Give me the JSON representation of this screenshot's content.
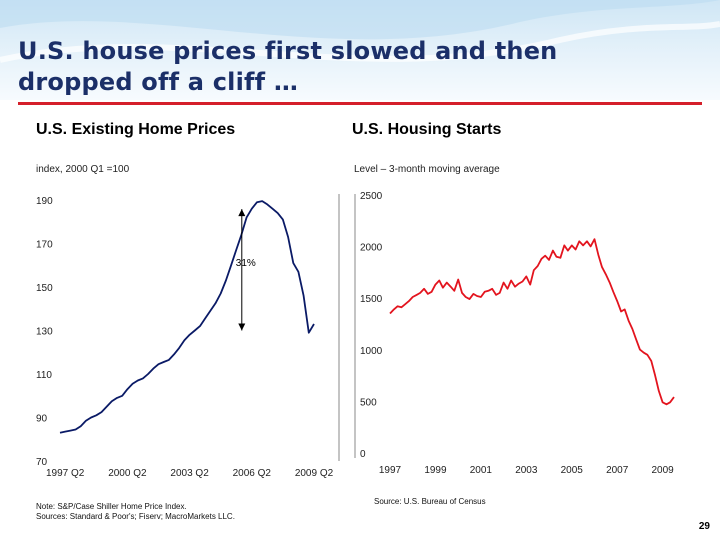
{
  "slide": {
    "title": "U.S. house prices first slowed and then dropped off a cliff …",
    "page_number": "29",
    "accent_color": "#d51f2a",
    "title_color": "#1b2f68"
  },
  "left_panel": {
    "title": "U.S. Existing Home Prices",
    "subtitle": "index, 2000 Q1 =100",
    "note": "Note: S&P/Case Shiller Home Price Index.\nSources: Standard & Poor's; Fiserv; MacroMarkets LLC."
  },
  "right_panel": {
    "title": "U.S. Housing Starts",
    "subtitle": "Level – 3-month moving average",
    "note": "Source: U.S. Bureau of Census"
  },
  "chart_data": [
    {
      "type": "line",
      "title": "U.S. Existing Home Prices",
      "ylabel": "index, 2000 Q1 =100",
      "ylim": [
        70,
        190
      ],
      "yticks": [
        190,
        170,
        150,
        130,
        110,
        90,
        70
      ],
      "xlim": [
        1997.0,
        2009.25
      ],
      "xticks": [
        {
          "label": "1997 Q2",
          "value": 1997.25
        },
        {
          "label": "2000 Q2",
          "value": 2000.25
        },
        {
          "label": "2003 Q2",
          "value": 2003.25
        },
        {
          "label": "2006 Q2",
          "value": 2006.25
        },
        {
          "label": "2009 Q2",
          "value": 2009.25
        }
      ],
      "series": [
        {
          "name": "S&P/Case Shiller Home Price Index",
          "color": "#0a1a66",
          "x": [
            1997.0,
            1997.25,
            1997.5,
            1997.75,
            1998.0,
            1998.25,
            1998.5,
            1998.75,
            1999.0,
            1999.25,
            1999.5,
            1999.75,
            2000.0,
            2000.25,
            2000.5,
            2000.75,
            2001.0,
            2001.25,
            2001.5,
            2001.75,
            2002.0,
            2002.25,
            2002.5,
            2002.75,
            2003.0,
            2003.25,
            2003.5,
            2003.75,
            2004.0,
            2004.25,
            2004.5,
            2004.75,
            2005.0,
            2005.25,
            2005.5,
            2005.75,
            2006.0,
            2006.25,
            2006.5,
            2006.75,
            2007.0,
            2007.25,
            2007.5,
            2007.75,
            2008.0,
            2008.25,
            2008.5,
            2008.75,
            2009.0,
            2009.25
          ],
          "values": [
            83,
            83.5,
            84,
            84.5,
            86,
            88.5,
            90,
            91,
            92.5,
            95,
            97.5,
            99,
            100,
            103,
            105.5,
            107,
            108,
            110,
            112.5,
            114.5,
            115.5,
            116.5,
            119,
            122,
            125.5,
            128,
            130,
            132,
            135.5,
            139,
            142.5,
            147,
            153,
            160,
            167,
            174,
            182,
            186,
            189,
            189.5,
            188,
            186,
            184,
            181,
            173,
            161,
            157,
            146,
            129,
            133
          ]
        }
      ],
      "annotations": [
        {
          "text": "31%",
          "type": "double-arrow",
          "from": 189.5,
          "to": 130,
          "at_x": 2006.25
        }
      ]
    },
    {
      "type": "line",
      "title": "U.S. Housing Starts",
      "ylabel": "Level – 3-month moving average",
      "ylim": [
        0,
        2500
      ],
      "yticks": [
        2500,
        2000,
        1500,
        1000,
        500,
        0
      ],
      "xlim": [
        1997.0,
        2009.5
      ],
      "xticks": [
        {
          "label": "1997",
          "value": 1997.0
        },
        {
          "label": "1999",
          "value": 1999.0
        },
        {
          "label": "2001",
          "value": 2001.0
        },
        {
          "label": "2003",
          "value": 2003.0
        },
        {
          "label": "2005",
          "value": 2005.0
        },
        {
          "label": "2007",
          "value": 2007.0
        },
        {
          "label": "2009",
          "value": 2009.0
        }
      ],
      "series": [
        {
          "name": "Housing Starts",
          "color": "#e3141e",
          "x": [
            1997.0,
            1997.17,
            1997.33,
            1997.5,
            1997.67,
            1997.83,
            1998.0,
            1998.17,
            1998.33,
            1998.5,
            1998.67,
            1998.83,
            1999.0,
            1999.17,
            1999.33,
            1999.5,
            1999.67,
            1999.83,
            2000.0,
            2000.17,
            2000.33,
            2000.5,
            2000.67,
            2000.83,
            2001.0,
            2001.17,
            2001.33,
            2001.5,
            2001.67,
            2001.83,
            2002.0,
            2002.17,
            2002.33,
            2002.5,
            2002.67,
            2002.83,
            2003.0,
            2003.17,
            2003.33,
            2003.5,
            2003.67,
            2003.83,
            2004.0,
            2004.17,
            2004.33,
            2004.5,
            2004.67,
            2004.83,
            2005.0,
            2005.17,
            2005.33,
            2005.5,
            2005.67,
            2005.83,
            2006.0,
            2006.17,
            2006.33,
            2006.5,
            2006.67,
            2006.83,
            2007.0,
            2007.17,
            2007.33,
            2007.5,
            2007.67,
            2007.83,
            2008.0,
            2008.17,
            2008.33,
            2008.5,
            2008.67,
            2008.83,
            2009.0,
            2009.17,
            2009.33,
            2009.5
          ],
          "values": [
            1400,
            1440,
            1470,
            1460,
            1490,
            1520,
            1560,
            1580,
            1600,
            1640,
            1590,
            1610,
            1680,
            1720,
            1650,
            1700,
            1660,
            1620,
            1730,
            1600,
            1560,
            1540,
            1590,
            1570,
            1560,
            1610,
            1620,
            1640,
            1580,
            1600,
            1700,
            1640,
            1720,
            1660,
            1690,
            1710,
            1760,
            1680,
            1820,
            1860,
            1930,
            1960,
            1920,
            2010,
            1950,
            1940,
            2060,
            2010,
            2060,
            2020,
            2100,
            2060,
            2100,
            2050,
            2120,
            1970,
            1850,
            1780,
            1700,
            1610,
            1520,
            1420,
            1440,
            1330,
            1250,
            1150,
            1050,
            1020,
            1000,
            940,
            800,
            650,
            540,
            520,
            540,
            590
          ]
        }
      ]
    }
  ]
}
